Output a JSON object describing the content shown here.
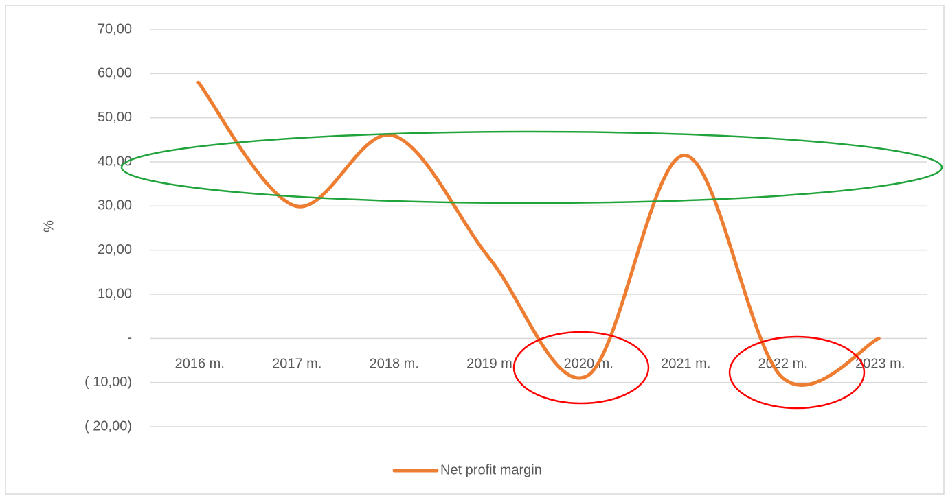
{
  "chart_data": {
    "type": "line",
    "y_label": "%",
    "categories": [
      "2016 m.",
      "2017 m.",
      "2018 m.",
      "2019 m.",
      "2020 m.",
      "2021 m.",
      "2022 m.",
      "2023 m."
    ],
    "series": [
      {
        "name": "Net profit margin",
        "color": "#ed7d31",
        "values": [
          58,
          30,
          46,
          18,
          -8.5,
          41.5,
          -8.7,
          0
        ]
      }
    ],
    "ylim": [
      -20,
      70
    ],
    "yticks": [
      {
        "value": -20,
        "label": "( 20,00)"
      },
      {
        "value": -10,
        "label": "( 10,00)"
      },
      {
        "value": 0,
        "label": "-"
      },
      {
        "value": 10,
        "label": "10,00"
      },
      {
        "value": 20,
        "label": "20,00"
      },
      {
        "value": 30,
        "label": "30,00"
      },
      {
        "value": 40,
        "label": "40,00"
      },
      {
        "value": 50,
        "label": "50,00"
      },
      {
        "value": 60,
        "label": "60,00"
      },
      {
        "value": 70,
        "label": "70,00"
      }
    ],
    "grid": true,
    "smooth": true,
    "legend": "bottom"
  }
}
